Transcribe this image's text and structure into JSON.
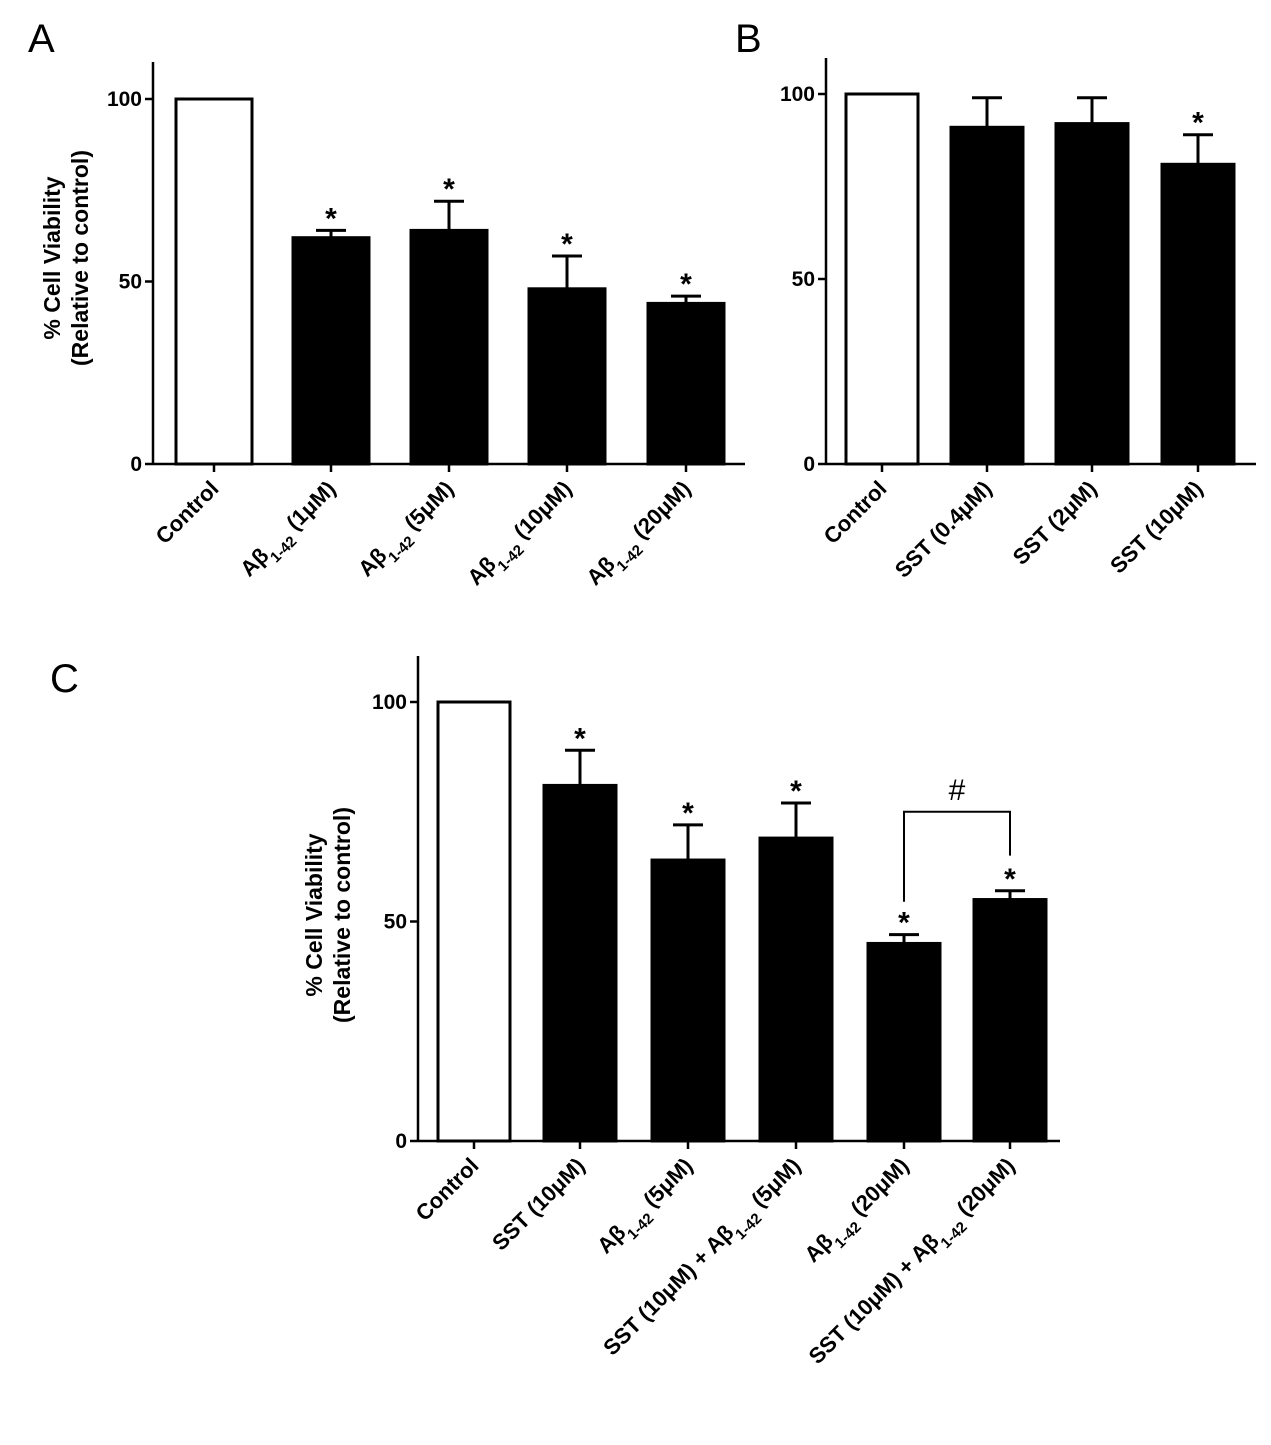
{
  "chart_data": [
    {
      "type": "bar",
      "panel": "A",
      "ylabel": "% Cell Viability",
      "ylabel2": "(Relative to control)",
      "ylim": [
        0,
        110
      ],
      "yticks": [
        0,
        50,
        100
      ],
      "categories": [
        {
          "pre": "Control",
          "sub": "",
          "post": ""
        },
        {
          "pre": "Aβ",
          "sub": "1-42",
          "post": " (1μM)"
        },
        {
          "pre": "Aβ",
          "sub": "1-42",
          "post": " (5μM)"
        },
        {
          "pre": "Aβ",
          "sub": "1-42",
          "post": " (10μM)"
        },
        {
          "pre": "Aβ",
          "sub": "1-42",
          "post": " (20μM)"
        }
      ],
      "values": [
        100,
        62,
        64,
        48,
        44
      ],
      "errors": [
        0,
        2,
        8,
        9,
        2
      ],
      "fills": [
        "white",
        "black",
        "black",
        "black",
        "black"
      ],
      "annotations": [
        "",
        "*",
        "*",
        "*",
        "*"
      ]
    },
    {
      "type": "bar",
      "panel": "B",
      "ylabel": "",
      "ylabel2": "",
      "ylim": [
        0,
        110
      ],
      "yticks": [
        0,
        50,
        100
      ],
      "categories": [
        {
          "pre": "Control",
          "sub": "",
          "post": ""
        },
        {
          "pre": "SST (0.4μM)",
          "sub": "",
          "post": ""
        },
        {
          "pre": "SST (2μM)",
          "sub": "",
          "post": ""
        },
        {
          "pre": "SST (10μM)",
          "sub": "",
          "post": ""
        }
      ],
      "values": [
        100,
        91,
        92,
        81
      ],
      "errors": [
        0,
        8,
        7,
        8
      ],
      "fills": [
        "white",
        "black",
        "black",
        "black"
      ],
      "annotations": [
        "",
        "",
        "",
        "*"
      ]
    },
    {
      "type": "bar",
      "panel": "C",
      "ylabel": "% Cell Viability",
      "ylabel2": "(Relative to control)",
      "ylim": [
        0,
        110
      ],
      "yticks": [
        0,
        50,
        100
      ],
      "categories": [
        {
          "pre": "Control",
          "sub": "",
          "post": ""
        },
        {
          "pre": "SST (10μM)",
          "sub": "",
          "post": ""
        },
        {
          "pre": "Aβ",
          "sub": "1-42",
          "post": " (5μM)"
        },
        {
          "pre": "SST (10μM) + Aβ",
          "sub": "1-42",
          "post": " (5μM)"
        },
        {
          "pre": "Aβ",
          "sub": "1-42",
          "post": " (20μM)"
        },
        {
          "pre": "SST (10μM) + Aβ",
          "sub": "1-42",
          "post": " (20μM)"
        }
      ],
      "values": [
        100,
        81,
        64,
        69,
        45,
        55
      ],
      "errors": [
        0,
        8,
        8,
        8,
        2,
        2
      ],
      "fills": [
        "white",
        "black",
        "black",
        "black",
        "black",
        "black"
      ],
      "annotations": [
        "",
        "*",
        "*",
        "*",
        "*",
        "*"
      ],
      "comparison": {
        "from": 4,
        "to": 5,
        "symbol": "#"
      }
    }
  ]
}
